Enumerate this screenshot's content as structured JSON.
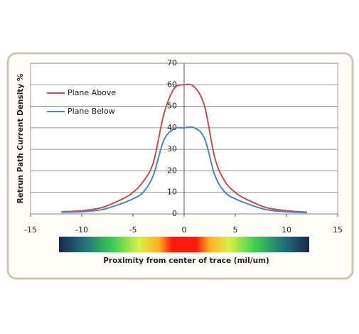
{
  "chart_data": {
    "type": "line",
    "x_label": "Proximity from center of trace (mil/um)",
    "y_label": "Retrun Path Current Density %",
    "x": [
      -12,
      -10,
      -8,
      -6,
      -5,
      -4,
      -3,
      -2,
      -1,
      0,
      1,
      2,
      3,
      4,
      5,
      6,
      8,
      10,
      12
    ],
    "series": [
      {
        "name": "Plane Above",
        "color": "#c0504d",
        "values": [
          1,
          1.5,
          3,
          7,
          10,
          15,
          24,
          46,
          58,
          60,
          59,
          50,
          26,
          15,
          10,
          7,
          3,
          1.5,
          0.8
        ]
      },
      {
        "name": "Plane Below",
        "color": "#4f81bd",
        "values": [
          0.8,
          1,
          2,
          5,
          7,
          10,
          18,
          34,
          39.5,
          40,
          40,
          35,
          18,
          10,
          7,
          5,
          2,
          1,
          0.6
        ]
      }
    ],
    "xlim": [
      -15,
      15
    ],
    "xticks": [
      -15,
      -10,
      -5,
      0,
      5,
      10,
      15
    ],
    "ylim": [
      0,
      70
    ],
    "yticks": [
      0,
      10,
      20,
      30,
      40,
      50,
      60,
      70
    ],
    "grid": true,
    "legend": "upper-left"
  }
}
